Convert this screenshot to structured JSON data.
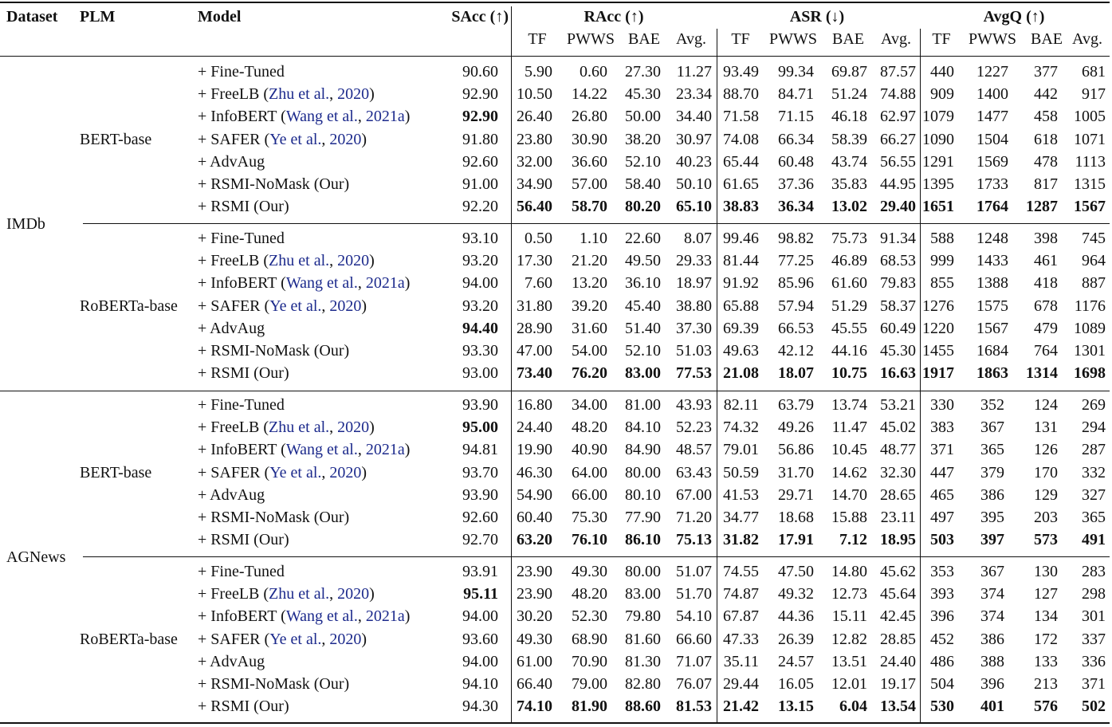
{
  "headers": {
    "dataset": "Dataset",
    "plm": "PLM",
    "model": "Model",
    "sacc": "SAcc (↑)",
    "racc": "RAcc (↑)",
    "asr": "ASR (↓)",
    "avgq": "AvgQ (↑)",
    "sub": [
      "TF",
      "PWWS",
      "BAE",
      "Avg."
    ]
  },
  "blocks": [
    {
      "dataset": "IMDb",
      "groups": [
        {
          "plm": "BERT-base",
          "rows": [
            {
              "model": "+ Fine-Tuned",
              "cite": "",
              "cite_year": "",
              "sacc": "90.60",
              "values": [
                "5.90",
                "0.60",
                "27.30",
                "11.27",
                "93.49",
                "99.34",
                "69.87",
                "87.57",
                "440",
                "1227",
                "377",
                "681"
              ],
              "sacc_bold": false,
              "bold_values": false
            },
            {
              "model": "+ FreeLB",
              "cite": "Zhu et al.",
              "cite_year": "2020",
              "sacc": "92.90",
              "values": [
                "10.50",
                "14.22",
                "45.30",
                "23.34",
                "88.70",
                "84.71",
                "51.24",
                "74.88",
                "909",
                "1400",
                "442",
                "917"
              ],
              "sacc_bold": false,
              "bold_values": false
            },
            {
              "model": "+ InfoBERT",
              "cite": "Wang et al.",
              "cite_year": "2021a",
              "sacc": "92.90",
              "values": [
                "26.40",
                "26.80",
                "50.00",
                "34.40",
                "71.58",
                "71.15",
                "46.18",
                "62.97",
                "1079",
                "1477",
                "458",
                "1005"
              ],
              "sacc_bold": true,
              "bold_values": false
            },
            {
              "model": "+ SAFER",
              "cite": "Ye et al.",
              "cite_year": "2020",
              "sacc": "91.80",
              "values": [
                "23.80",
                "30.90",
                "38.20",
                "30.97",
                "74.08",
                "66.34",
                "58.39",
                "66.27",
                "1090",
                "1504",
                "618",
                "1071"
              ],
              "sacc_bold": false,
              "bold_values": false
            },
            {
              "model": "+ AdvAug",
              "cite": "",
              "cite_year": "",
              "sacc": "92.60",
              "values": [
                "32.00",
                "36.60",
                "52.10",
                "40.23",
                "65.44",
                "60.48",
                "43.74",
                "56.55",
                "1291",
                "1569",
                "478",
                "1113"
              ],
              "sacc_bold": false,
              "bold_values": false
            },
            {
              "model": "+ RSMI-NoMask (Our)",
              "cite": "",
              "cite_year": "",
              "sacc": "91.00",
              "values": [
                "34.90",
                "57.00",
                "58.40",
                "50.10",
                "61.65",
                "37.36",
                "35.83",
                "44.95",
                "1395",
                "1733",
                "817",
                "1315"
              ],
              "sacc_bold": false,
              "bold_values": false
            },
            {
              "model": "+ RSMI (Our)",
              "cite": "",
              "cite_year": "",
              "sacc": "92.20",
              "values": [
                "56.40",
                "58.70",
                "80.20",
                "65.10",
                "38.83",
                "36.34",
                "13.02",
                "29.40",
                "1651",
                "1764",
                "1287",
                "1567"
              ],
              "sacc_bold": false,
              "bold_values": true
            }
          ]
        },
        {
          "plm": "RoBERTa-base",
          "rows": [
            {
              "model": "+ Fine-Tuned",
              "cite": "",
              "cite_year": "",
              "sacc": "93.10",
              "values": [
                "0.50",
                "1.10",
                "22.60",
                "8.07",
                "99.46",
                "98.82",
                "75.73",
                "91.34",
                "588",
                "1248",
                "398",
                "745"
              ],
              "sacc_bold": false,
              "bold_values": false
            },
            {
              "model": "+ FreeLB",
              "cite": "Zhu et al.",
              "cite_year": "2020",
              "sacc": "93.20",
              "values": [
                "17.30",
                "21.20",
                "49.50",
                "29.33",
                "81.44",
                "77.25",
                "46.89",
                "68.53",
                "999",
                "1433",
                "461",
                "964"
              ],
              "sacc_bold": false,
              "bold_values": false
            },
            {
              "model": "+ InfoBERT",
              "cite": "Wang et al.",
              "cite_year": "2021a",
              "sacc": "94.00",
              "values": [
                "7.60",
                "13.20",
                "36.10",
                "18.97",
                "91.92",
                "85.96",
                "61.60",
                "79.83",
                "855",
                "1388",
                "418",
                "887"
              ],
              "sacc_bold": false,
              "bold_values": false
            },
            {
              "model": "+ SAFER",
              "cite": "Ye et al.",
              "cite_year": "2020",
              "sacc": "93.20",
              "values": [
                "31.80",
                "39.20",
                "45.40",
                "38.80",
                "65.88",
                "57.94",
                "51.29",
                "58.37",
                "1276",
                "1575",
                "678",
                "1176"
              ],
              "sacc_bold": false,
              "bold_values": false
            },
            {
              "model": "+ AdvAug",
              "cite": "",
              "cite_year": "",
              "sacc": "94.40",
              "values": [
                "28.90",
                "31.60",
                "51.40",
                "37.30",
                "69.39",
                "66.53",
                "45.55",
                "60.49",
                "1220",
                "1567",
                "479",
                "1089"
              ],
              "sacc_bold": true,
              "bold_values": false
            },
            {
              "model": "+ RSMI-NoMask (Our)",
              "cite": "",
              "cite_year": "",
              "sacc": "93.30",
              "values": [
                "47.00",
                "54.00",
                "52.10",
                "51.03",
                "49.63",
                "42.12",
                "44.16",
                "45.30",
                "1455",
                "1684",
                "764",
                "1301"
              ],
              "sacc_bold": false,
              "bold_values": false
            },
            {
              "model": "+ RSMI (Our)",
              "cite": "",
              "cite_year": "",
              "sacc": "93.00",
              "values": [
                "73.40",
                "76.20",
                "83.00",
                "77.53",
                "21.08",
                "18.07",
                "10.75",
                "16.63",
                "1917",
                "1863",
                "1314",
                "1698"
              ],
              "sacc_bold": false,
              "bold_values": true
            }
          ]
        }
      ]
    },
    {
      "dataset": "AGNews",
      "groups": [
        {
          "plm": "BERT-base",
          "rows": [
            {
              "model": "+ Fine-Tuned",
              "cite": "",
              "cite_year": "",
              "sacc": "93.90",
              "values": [
                "16.80",
                "34.00",
                "81.00",
                "43.93",
                "82.11",
                "63.79",
                "13.74",
                "53.21",
                "330",
                "352",
                "124",
                "269"
              ],
              "sacc_bold": false,
              "bold_values": false
            },
            {
              "model": "+ FreeLB",
              "cite": "Zhu et al.",
              "cite_year": "2020",
              "sacc": "95.00",
              "values": [
                "24.40",
                "48.20",
                "84.10",
                "52.23",
                "74.32",
                "49.26",
                "11.47",
                "45.02",
                "383",
                "367",
                "131",
                "294"
              ],
              "sacc_bold": true,
              "bold_values": false
            },
            {
              "model": "+ InfoBERT",
              "cite": "Wang et al.",
              "cite_year": "2021a",
              "sacc": "94.81",
              "values": [
                "19.90",
                "40.90",
                "84.90",
                "48.57",
                "79.01",
                "56.86",
                "10.45",
                "48.77",
                "371",
                "365",
                "126",
                "287"
              ],
              "sacc_bold": false,
              "bold_values": false
            },
            {
              "model": "+ SAFER",
              "cite": "Ye et al.",
              "cite_year": "2020",
              "sacc": "93.70",
              "values": [
                "46.30",
                "64.00",
                "80.00",
                "63.43",
                "50.59",
                "31.70",
                "14.62",
                "32.30",
                "447",
                "379",
                "170",
                "332"
              ],
              "sacc_bold": false,
              "bold_values": false
            },
            {
              "model": "+ AdvAug",
              "cite": "",
              "cite_year": "",
              "sacc": "93.90",
              "values": [
                "54.90",
                "66.00",
                "80.10",
                "67.00",
                "41.53",
                "29.71",
                "14.70",
                "28.65",
                "465",
                "386",
                "129",
                "327"
              ],
              "sacc_bold": false,
              "bold_values": false
            },
            {
              "model": "+ RSMI-NoMask (Our)",
              "cite": "",
              "cite_year": "",
              "sacc": "92.60",
              "values": [
                "60.40",
                "75.30",
                "77.90",
                "71.20",
                "34.77",
                "18.68",
                "15.88",
                "23.11",
                "497",
                "395",
                "203",
                "365"
              ],
              "sacc_bold": false,
              "bold_values": false
            },
            {
              "model": "+ RSMI (Our)",
              "cite": "",
              "cite_year": "",
              "sacc": "92.70",
              "values": [
                "63.20",
                "76.10",
                "86.10",
                "75.13",
                "31.82",
                "17.91",
                "7.12",
                "18.95",
                "503",
                "397",
                "573",
                "491"
              ],
              "sacc_bold": false,
              "bold_values": true
            }
          ]
        },
        {
          "plm": "RoBERTa-base",
          "rows": [
            {
              "model": "+ Fine-Tuned",
              "cite": "",
              "cite_year": "",
              "sacc": "93.91",
              "values": [
                "23.90",
                "49.30",
                "80.00",
                "51.07",
                "74.55",
                "47.50",
                "14.80",
                "45.62",
                "353",
                "367",
                "130",
                "283"
              ],
              "sacc_bold": false,
              "bold_values": false
            },
            {
              "model": "+ FreeLB",
              "cite": "Zhu et al.",
              "cite_year": "2020",
              "sacc": "95.11",
              "values": [
                "23.90",
                "48.20",
                "83.00",
                "51.70",
                "74.87",
                "49.32",
                "12.73",
                "45.64",
                "393",
                "374",
                "127",
                "298"
              ],
              "sacc_bold": true,
              "bold_values": false
            },
            {
              "model": "+ InfoBERT",
              "cite": "Wang et al.",
              "cite_year": "2021a",
              "sacc": "94.00",
              "values": [
                "30.20",
                "52.30",
                "79.80",
                "54.10",
                "67.87",
                "44.36",
                "15.11",
                "42.45",
                "396",
                "374",
                "134",
                "301"
              ],
              "sacc_bold": false,
              "bold_values": false
            },
            {
              "model": "+ SAFER",
              "cite": "Ye et al.",
              "cite_year": "2020",
              "sacc": "93.60",
              "values": [
                "49.30",
                "68.90",
                "81.60",
                "66.60",
                "47.33",
                "26.39",
                "12.82",
                "28.85",
                "452",
                "386",
                "172",
                "337"
              ],
              "sacc_bold": false,
              "bold_values": false
            },
            {
              "model": "+ AdvAug",
              "cite": "",
              "cite_year": "",
              "sacc": "94.00",
              "values": [
                "61.00",
                "70.90",
                "81.30",
                "71.07",
                "35.11",
                "24.57",
                "13.51",
                "24.40",
                "486",
                "388",
                "133",
                "336"
              ],
              "sacc_bold": false,
              "bold_values": false
            },
            {
              "model": "+ RSMI-NoMask (Our)",
              "cite": "",
              "cite_year": "",
              "sacc": "94.10",
              "values": [
                "66.40",
                "79.00",
                "82.80",
                "76.07",
                "29.44",
                "16.05",
                "12.01",
                "19.17",
                "504",
                "396",
                "213",
                "371"
              ],
              "sacc_bold": false,
              "bold_values": false
            },
            {
              "model": "+ RSMI (Our)",
              "cite": "",
              "cite_year": "",
              "sacc": "94.30",
              "values": [
                "74.10",
                "81.90",
                "88.60",
                "81.53",
                "21.42",
                "13.15",
                "6.04",
                "13.54",
                "530",
                "401",
                "576",
                "502"
              ],
              "sacc_bold": false,
              "bold_values": true
            }
          ]
        }
      ]
    }
  ]
}
